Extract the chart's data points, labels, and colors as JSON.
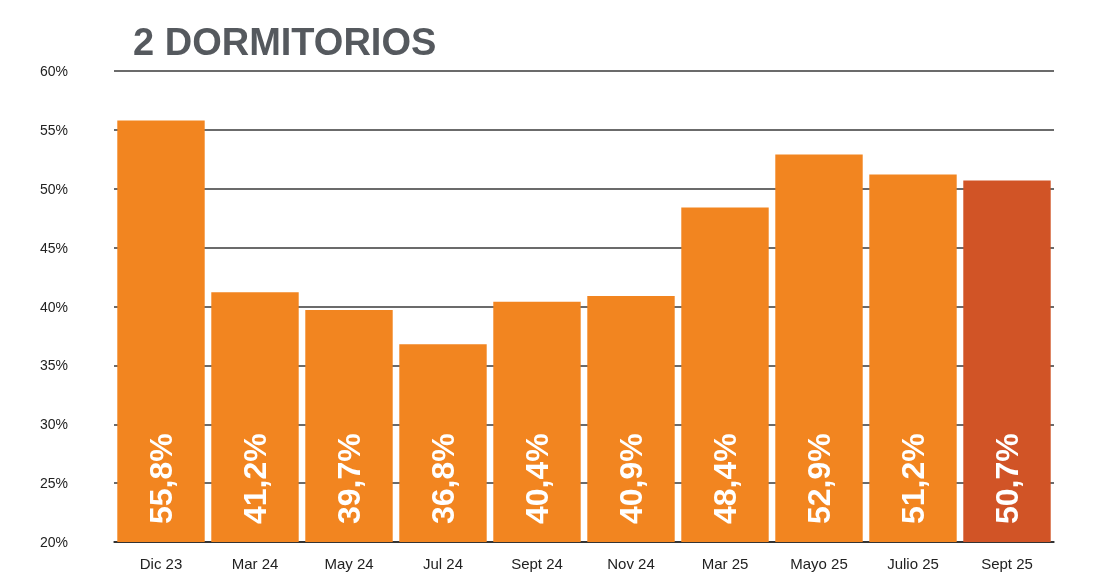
{
  "chart_data": {
    "type": "bar",
    "title": "2 DORMITORIOS",
    "categories": [
      "Dic 23",
      "Mar 24",
      "May 24",
      "Jul 24",
      "Sept 24",
      "Nov 24",
      "Mar 25",
      "Mayo 25",
      "Julio 25",
      "Sept 25"
    ],
    "values": [
      55.8,
      41.2,
      39.7,
      36.8,
      40.4,
      40.9,
      48.4,
      52.9,
      51.2,
      50.7
    ],
    "colors": [
      "#f28520",
      "#f28520",
      "#f28520",
      "#f28520",
      "#f28520",
      "#f28520",
      "#f28520",
      "#f28520",
      "#f28520",
      "#d15426"
    ],
    "value_labels": [
      "55,8%",
      "41,2%",
      "39,7%",
      "36,8%",
      "40,4%",
      "40,9%",
      "48,4%",
      "52,9%",
      "51,2%",
      "50,7%"
    ],
    "ylim": [
      20,
      60
    ],
    "yticks": [
      {
        "value": 20,
        "label": "20%"
      },
      {
        "value": 25,
        "label": "25%"
      },
      {
        "value": 30,
        "label": "30%"
      },
      {
        "value": 35,
        "label": "35%"
      },
      {
        "value": 40,
        "label": "40%"
      },
      {
        "value": 45,
        "label": "45%"
      },
      {
        "value": 50,
        "label": "50%"
      },
      {
        "value": 55,
        "label": "55%"
      },
      {
        "value": 60,
        "label": "60%"
      }
    ],
    "grid": "y"
  }
}
